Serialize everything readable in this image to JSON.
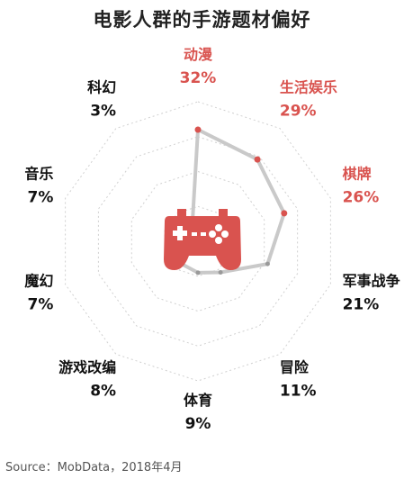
{
  "chart_data": {
    "type": "radar",
    "title": "电影人群的手游题材偏好",
    "categories": [
      "动漫",
      "生活娱乐",
      "棋牌",
      "军事战争",
      "冒险",
      "体育",
      "游戏改编",
      "魔幻",
      "音乐",
      "科幻"
    ],
    "value_labels": [
      "32%",
      "29%",
      "26%",
      "21%",
      "11%",
      "9%",
      "8%",
      "7%",
      "7%",
      "3%"
    ],
    "values": [
      32,
      29,
      26,
      21,
      11,
      9,
      8,
      7,
      7,
      3
    ],
    "highlight_categories": [
      "动漫",
      "生活娱乐",
      "棋牌"
    ],
    "grid": true,
    "center_icon": "gamepad-icon",
    "colors": {
      "highlight": "#d9534f",
      "normal": "#111111",
      "line": "#c9c9c9",
      "grid": "#d0d0d0",
      "icon": "#d9534f"
    }
  },
  "footer": {
    "source": "Source：MobData，2018年4月"
  }
}
